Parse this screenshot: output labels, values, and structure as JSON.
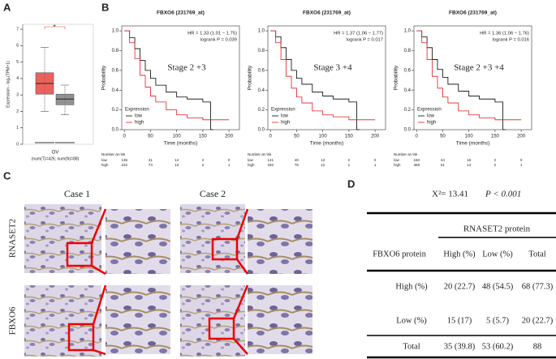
{
  "panels": {
    "a": {
      "label": "A",
      "ylabel": "Expression - log₂(TPM+1)",
      "ylim": [
        0,
        7.3
      ],
      "yticks": [
        0,
        1,
        2,
        3,
        4,
        5,
        6,
        7
      ],
      "category": "OV",
      "subtitle": "(num(T)=426; num(N)=88)",
      "significance": "*",
      "boxes": [
        {
          "color": "#e8473f",
          "whisker_low": 2.0,
          "q1": 3.05,
          "median": 3.7,
          "q3": 4.35,
          "whisker_high": 5.9
        },
        {
          "color": "#7f7f7f",
          "whisker_low": 1.8,
          "q1": 2.4,
          "median": 2.75,
          "q3": 3.05,
          "whisker_high": 3.6
        }
      ]
    },
    "b": {
      "label": "B",
      "plots": [
        {
          "title": "FBXO6 (231769_at)",
          "hr": "HR = 1.33 (1.01 − 1.75)",
          "logrank": "logrank P = 0.039",
          "stage": "Stage 2 +3",
          "ylabel": "Probability",
          "xlabel": "Time (months)",
          "xlim": [
            -5,
            220
          ],
          "ylim": [
            0,
            1.05
          ],
          "xticks": [
            0,
            50,
            100,
            150,
            200
          ],
          "yticks": [
            {
              "value": 0,
              "label": "0.0"
            },
            0.2,
            0.4,
            0.6,
            0.8,
            {
              "value": 1,
              "label": "1.0"
            }
          ],
          "legend_title": "Expression",
          "series": [
            {
              "name": "low",
              "color": "#000000",
              "x": [
                0,
                10,
                20,
                30,
                40,
                50,
                60,
                80,
                100,
                120,
                150,
                165,
                170
              ],
              "y": [
                1,
                0.93,
                0.82,
                0.7,
                0.6,
                0.52,
                0.45,
                0.38,
                0.33,
                0.31,
                0.28,
                0,
                0
              ]
            },
            {
              "name": "high",
              "color": "#e41a1c",
              "x": [
                0,
                10,
                20,
                30,
                40,
                50,
                60,
                80,
                100,
                120,
                150,
                200
              ],
              "y": [
                1,
                0.88,
                0.72,
                0.55,
                0.43,
                0.34,
                0.28,
                0.2,
                0.15,
                0.12,
                0.1,
                0.1
              ]
            }
          ],
          "risk": {
            "title": "Number at risk",
            "rows": [
              {
                "name": "low",
                "values": [
                  136,
                  41,
                  14,
                  2,
                  0
                ]
              },
              {
                "name": "high",
                "values": [
                  222,
                  74,
                  13,
                  2,
                  1
                ]
              }
            ]
          }
        },
        {
          "title": "FBXO6 (231769_at)",
          "hr": "HR = 1.37 (1.06 − 1.77)",
          "logrank": "logrank P = 0.017",
          "stage": "Stage 3 +4",
          "ylabel": "Probability",
          "xlabel": "Time (months)",
          "xlim": [
            -5,
            220
          ],
          "ylim": [
            0,
            1.05
          ],
          "xticks": [
            0,
            50,
            100,
            150,
            200
          ],
          "yticks": [
            {
              "value": 0,
              "label": "0.0"
            },
            0.2,
            0.4,
            0.6,
            0.8,
            {
              "value": 1,
              "label": "1.0"
            }
          ],
          "legend_title": "Expression",
          "series": [
            {
              "name": "low",
              "color": "#000000",
              "x": [
                0,
                10,
                20,
                30,
                40,
                50,
                60,
                80,
                100,
                120,
                150,
                165,
                170
              ],
              "y": [
                1,
                0.94,
                0.83,
                0.71,
                0.6,
                0.52,
                0.46,
                0.38,
                0.34,
                0.31,
                0.28,
                0,
                0
              ]
            },
            {
              "name": "high",
              "color": "#e41a1c",
              "x": [
                0,
                10,
                20,
                30,
                40,
                50,
                60,
                80,
                100,
                120,
                150,
                200
              ],
              "y": [
                1,
                0.88,
                0.71,
                0.54,
                0.42,
                0.33,
                0.27,
                0.19,
                0.15,
                0.13,
                0.1,
                0.1
              ]
            }
          ],
          "risk": {
            "title": "Number at risk",
            "rows": [
              {
                "name": "low",
                "values": [
                  141,
                  40,
                  13,
                  2,
                  0
                ]
              },
              {
                "name": "high",
                "values": [
                  340,
                  75,
                  12,
                  1,
                  1
                ]
              }
            ]
          }
        },
        {
          "title": "FBXO6 (231769_at)",
          "hr": "HR = 1.36 (1.06 − 1.76)",
          "logrank": "logrank P = 0.016",
          "stage": "Stage 2 +3 +4",
          "ylabel": "Probability",
          "xlabel": "Time (months)",
          "xlim": [
            -5,
            220
          ],
          "ylim": [
            0,
            1.05
          ],
          "xticks": [
            0,
            50,
            100,
            150,
            200
          ],
          "yticks": [
            {
              "value": 0,
              "label": "0.0"
            },
            0.2,
            0.4,
            0.6,
            0.8,
            {
              "value": 1,
              "label": "1.0"
            }
          ],
          "legend_title": "Expression",
          "series": [
            {
              "name": "low",
              "color": "#000000",
              "x": [
                0,
                10,
                20,
                30,
                40,
                50,
                60,
                80,
                100,
                120,
                150,
                165,
                170
              ],
              "y": [
                1,
                0.94,
                0.83,
                0.71,
                0.61,
                0.53,
                0.46,
                0.39,
                0.34,
                0.31,
                0.28,
                0,
                0
              ]
            },
            {
              "name": "high",
              "color": "#e41a1c",
              "x": [
                0,
                10,
                20,
                30,
                40,
                50,
                60,
                80,
                100,
                120,
                150,
                200
              ],
              "y": [
                1,
                0.88,
                0.71,
                0.54,
                0.42,
                0.33,
                0.27,
                0.19,
                0.15,
                0.12,
                0.1,
                0.1
              ]
            }
          ],
          "risk": {
            "title": "Number at risk",
            "rows": [
              {
                "name": "low",
                "values": [
                  150,
                  44,
                  16,
                  2,
                  0
                ]
              },
              {
                "name": "high",
                "values": [
                  369,
                  61,
                  14,
                  2,
                  1
                ]
              }
            ]
          }
        }
      ]
    },
    "c": {
      "label": "C",
      "cases": [
        "Case 1",
        "Case 2"
      ],
      "rows": [
        "RNASET2",
        "FBXO6"
      ]
    },
    "d": {
      "label": "D",
      "statistic": "X²= 13.41",
      "p": "P < 0.001",
      "table": {
        "group_header": "RNASET2  protein",
        "columns": [
          "FBXO6 protein",
          "High (%)",
          "Low (%)",
          "Total"
        ],
        "rows": [
          [
            "High (%)",
            "20 (22.7)",
            "48 (54.5)",
            "68 (77.3)"
          ],
          [
            "Low (%)",
            "15 (17)",
            "5 (5.7)",
            "20 (22.7)"
          ],
          [
            "Total",
            "35 (39.8)",
            "53 (60.2)",
            "88"
          ]
        ]
      }
    }
  }
}
